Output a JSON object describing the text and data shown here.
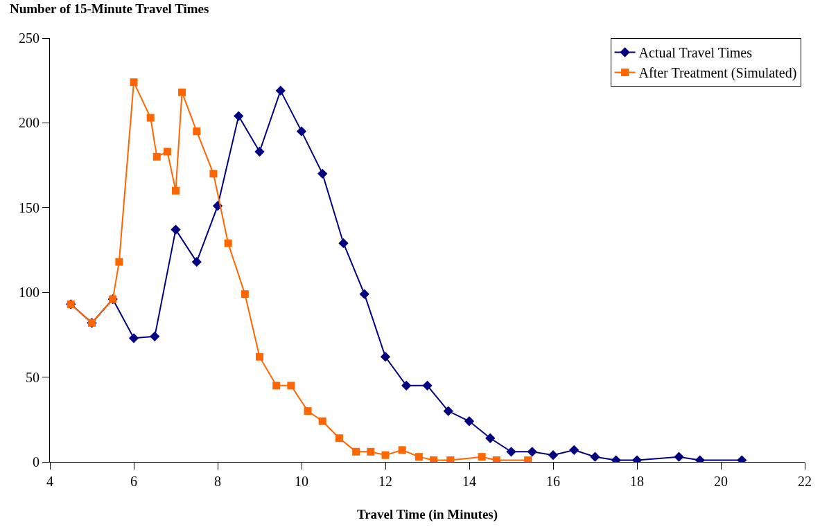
{
  "chart_data": {
    "type": "line",
    "ylabel": "Number of 15-Minute Travel Times",
    "xlabel": "Travel Time (in Minutes)",
    "xlim": [
      4,
      22
    ],
    "xticks": [
      4,
      6,
      8,
      10,
      12,
      14,
      16,
      18,
      20,
      22
    ],
    "ylim": [
      0,
      250
    ],
    "yticks": [
      0,
      50,
      100,
      150,
      200,
      250
    ],
    "legend": "top right",
    "line_style": "solid",
    "series": [
      {
        "name": "Actual Travel Times",
        "color": "#000080",
        "marker": "diamond",
        "x": [
          4.5,
          5,
          5.5,
          6,
          6.5,
          7,
          7.5,
          8,
          8.5,
          9,
          9.5,
          10,
          10.5,
          11,
          11.5,
          12,
          12.5,
          13,
          13.5,
          14,
          14.5,
          15,
          15.5,
          16,
          16.5,
          17,
          17.5,
          18,
          19,
          19.5,
          20.5
        ],
        "values": [
          93,
          82,
          96,
          73,
          74,
          137,
          118,
          151,
          204,
          183,
          219,
          195,
          170,
          129,
          99,
          62,
          45,
          45,
          30,
          24,
          14,
          6,
          6,
          4,
          7,
          3,
          1,
          1,
          3,
          1,
          1
        ]
      },
      {
        "name": "After Treatment (Simulated)",
        "color": "#ff6600",
        "marker": "square",
        "x": [
          4.5,
          5,
          5.5,
          5.65,
          6.0,
          6.4,
          6.55,
          6.8,
          7.0,
          7.15,
          7.5,
          7.9,
          8.25,
          8.65,
          9.0,
          9.4,
          9.75,
          10.15,
          10.5,
          10.9,
          11.3,
          11.65,
          12.0,
          12.4,
          12.8,
          13.15,
          13.55,
          14.3,
          14.65,
          15.4
        ],
        "values": [
          93,
          82,
          96,
          118,
          224,
          203,
          180,
          183,
          160,
          218,
          195,
          170,
          129,
          99,
          62,
          45,
          45,
          30,
          24,
          14,
          6,
          6,
          4,
          7,
          3,
          1,
          1,
          3,
          1,
          1
        ]
      }
    ]
  }
}
